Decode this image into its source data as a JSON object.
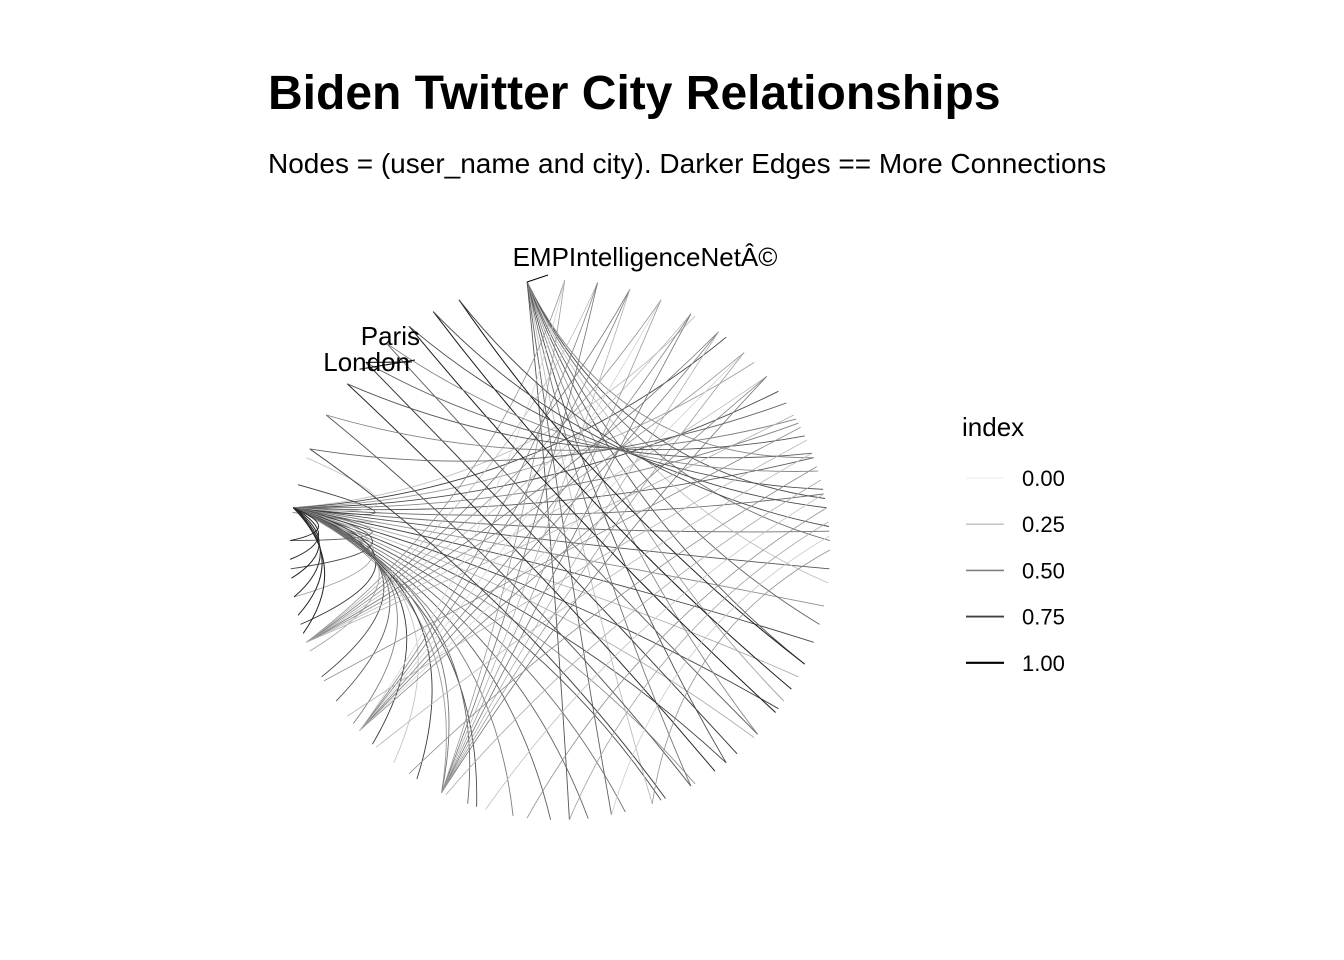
{
  "title": "Biden Twitter City Relationships",
  "subtitle": "Nodes = (user_name and city). Darker Edges == More Connections",
  "chart_data": {
    "type": "arc-network",
    "layout": "circular",
    "node_labels": [
      "EMPIntelligenceNetÂ©",
      "Paris",
      "London"
    ],
    "legend": {
      "title": "index",
      "entries": [
        "0.00",
        "0.25",
        "0.50",
        "0.75",
        "1.00"
      ],
      "values": [
        0.0,
        0.25,
        0.5,
        0.75,
        1.0
      ],
      "placement": "right"
    }
  }
}
